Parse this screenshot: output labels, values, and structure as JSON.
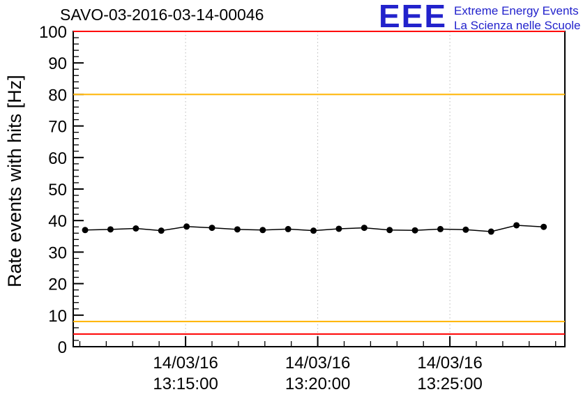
{
  "header": {
    "logo": {
      "acronym": "EEE",
      "line1": "Extreme Energy Events",
      "line2": "La Scienza nelle Scuole",
      "color": "#2222cc"
    }
  },
  "chart_data": {
    "type": "line",
    "title": "SAVO-03-2016-03-14-00046",
    "ylabel": "Rate events with hits [Hz]",
    "xlabel": "",
    "ylim": [
      0,
      100
    ],
    "y_major_tick_step": 10,
    "y_minor_tick_step": 2,
    "x_axis": {
      "unit": "minutes after 13:10:00 on 14/03/16",
      "range": [
        0.75,
        19.35
      ],
      "minor_tick_step": 1,
      "major_ticks": [
        {
          "pos": 5,
          "label_date": "14/03/16",
          "label_time": "13:15:00"
        },
        {
          "pos": 10,
          "label_date": "14/03/16",
          "label_time": "13:20:00"
        },
        {
          "pos": 15,
          "label_date": "14/03/16",
          "label_time": "13:25:00"
        }
      ]
    },
    "series": [
      {
        "name": "rate-events-with-hits",
        "marker": "filled-circle",
        "color": "#000000",
        "x": [
          1.2,
          2.16,
          3.12,
          4.08,
          5.04,
          6.0,
          6.96,
          7.92,
          8.88,
          9.84,
          10.8,
          11.76,
          12.72,
          13.68,
          14.64,
          15.6,
          16.56,
          17.52,
          18.55
        ],
        "values": [
          37.0,
          37.2,
          37.5,
          36.8,
          38.1,
          37.7,
          37.2,
          37.0,
          37.3,
          36.8,
          37.4,
          37.7,
          37.0,
          36.9,
          37.3,
          37.1,
          36.5,
          38.5,
          38.0
        ]
      }
    ],
    "threshold_lines": [
      {
        "value": 100,
        "color": "#ff0000"
      },
      {
        "value": 80,
        "color": "#ffb300"
      },
      {
        "value": 8,
        "color": "#ffb300"
      },
      {
        "value": 4,
        "color": "#ff0000"
      }
    ],
    "grid": {
      "vertical_dotted_at_major_ticks": true,
      "color": "#b8b8b8"
    },
    "legend": "none"
  }
}
